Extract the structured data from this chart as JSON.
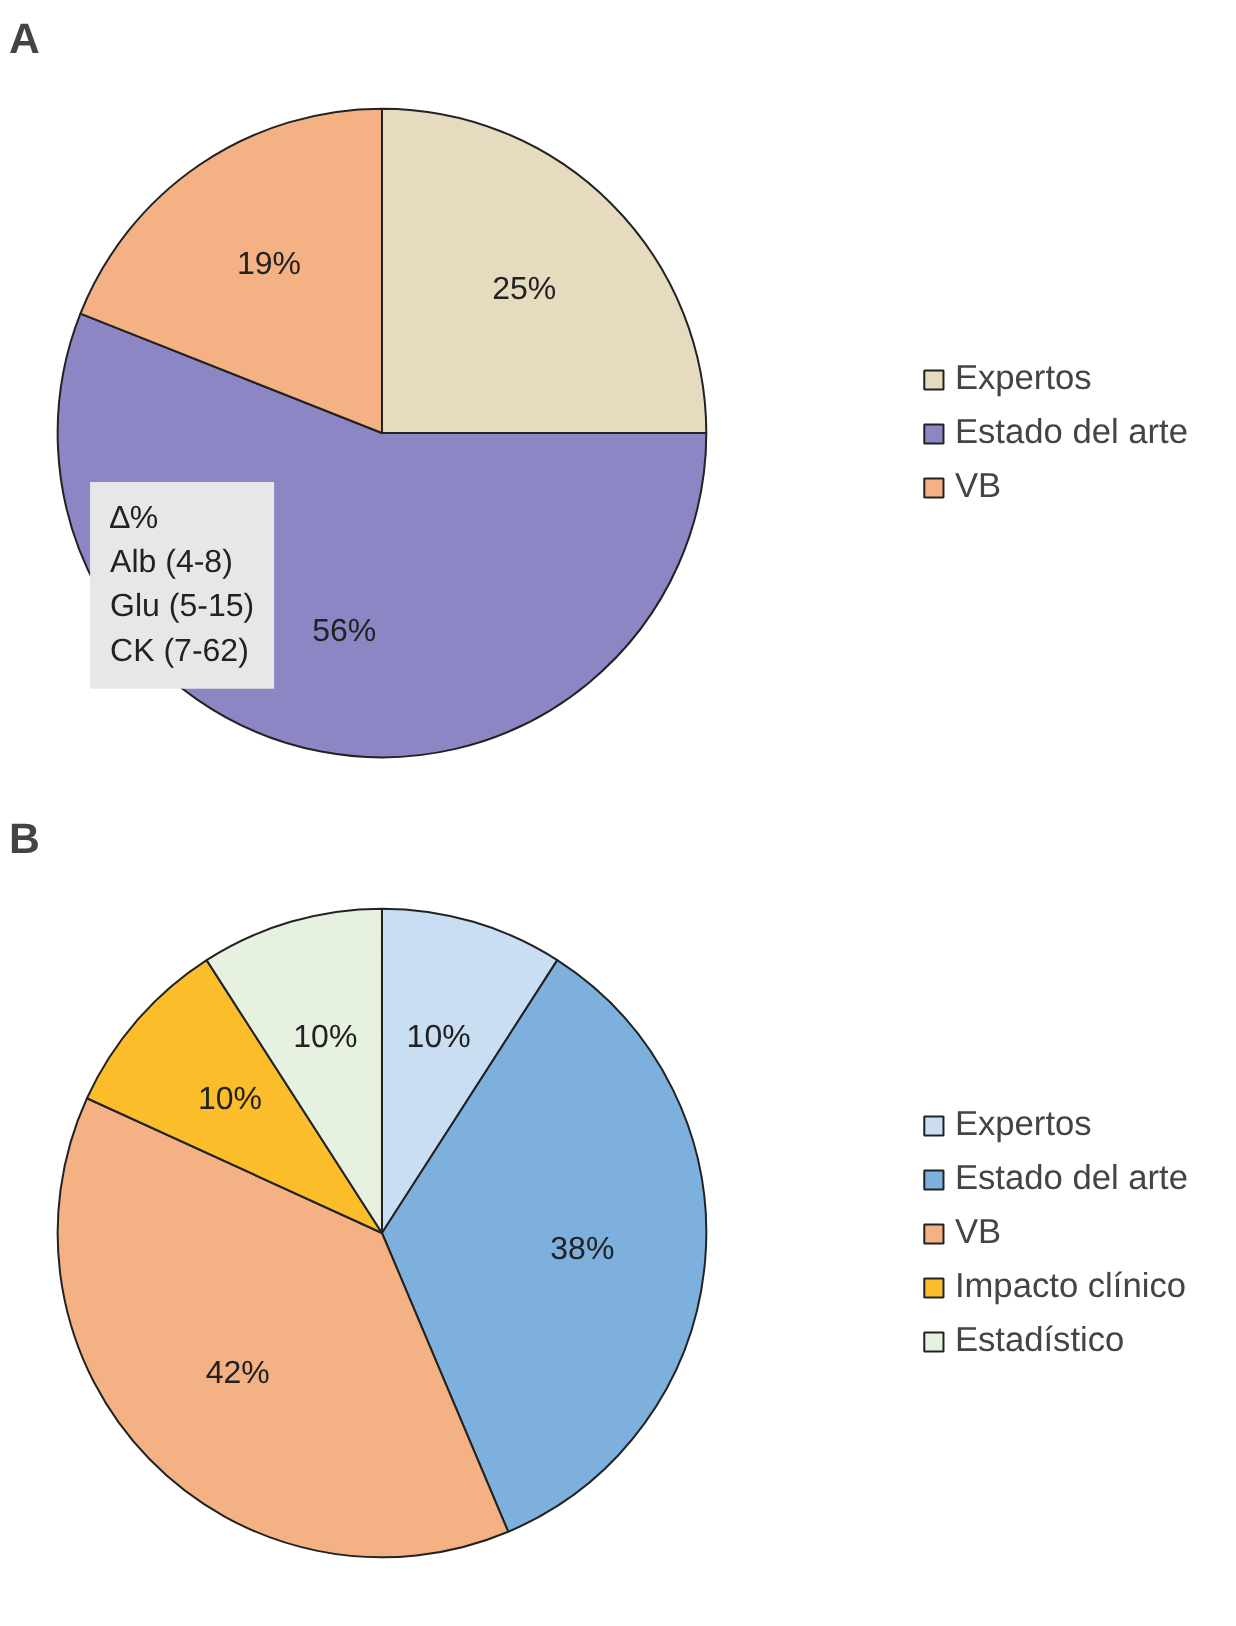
{
  "chart_data": [
    {
      "type": "pie",
      "title": "A",
      "categories": [
        "Expertos",
        "Estado del arte",
        "VB"
      ],
      "values": [
        25,
        56,
        19
      ],
      "colors": [
        "#e6dbbf",
        "#8c86c4",
        "#f4b183"
      ],
      "value_labels": [
        "25%",
        "56%",
        "19%"
      ],
      "legend": "right",
      "annotations": [
        "∆%\nAlb (4-8)\nGlu (5-15)\nCK (7-62)"
      ]
    },
    {
      "type": "pie",
      "title": "B",
      "categories": [
        "Expertos",
        "Estado del arte",
        "VB",
        "Impacto clínico",
        "Estadístico"
      ],
      "values": [
        10,
        38,
        42,
        10,
        10
      ],
      "colors": [
        "#c9def2",
        "#7eb0dd",
        "#f4b183",
        "#fbbd2a",
        "#e6f2df"
      ],
      "value_labels": [
        "10%",
        "38%",
        "42%",
        "10%",
        "10%"
      ],
      "legend": "right"
    }
  ]
}
